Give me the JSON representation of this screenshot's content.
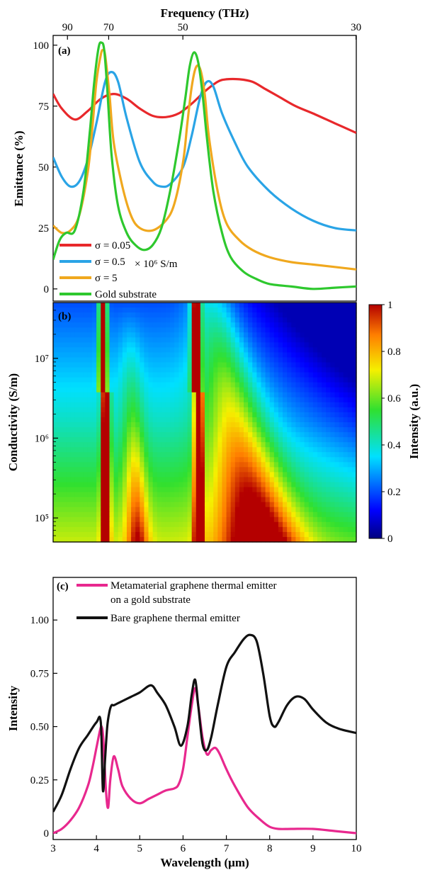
{
  "figure": {
    "panel_a_label": "(a)",
    "panel_b_label": "(b)",
    "panel_c_label": "(c)",
    "top_axis_title": "Frequency (THz)",
    "top_axis_ticks": [
      "90",
      "70",
      "50",
      "30"
    ],
    "ylabel_a": "Emittance (%)",
    "ylabel_b": "Conductivity (S/m)",
    "ylabel_c": "Intensity",
    "xlabel": "Wavelength (μm)",
    "colorbar_label": "Intensity (a.u.)",
    "legend_unit_text": "× 10⁶ S/m"
  },
  "chart_data": [
    {
      "panel": "a",
      "type": "line",
      "ylabel": "Emittance (%)",
      "xlabel_top": "Frequency (THz)",
      "x_ticks_top": [
        90,
        70,
        50,
        30
      ],
      "y_ticks": [
        0,
        25,
        50,
        75,
        100
      ],
      "xlim": [
        3,
        10
      ],
      "ylim": [
        -5,
        104
      ],
      "legend_position": "bottom-left",
      "series": [
        {
          "name": "σ = 0.05",
          "color": "#e8282b",
          "x": [
            3.0,
            3.2,
            3.5,
            3.8,
            4.1,
            4.4,
            4.7,
            5.0,
            5.3,
            5.6,
            5.9,
            6.2,
            6.5,
            6.8,
            7.0,
            7.3,
            7.6,
            7.9,
            8.2,
            8.6,
            9.0,
            9.5,
            10.0
          ],
          "y": [
            80,
            74,
            69.5,
            73,
            78,
            80,
            78,
            74,
            71,
            70.5,
            72,
            76,
            81,
            85,
            86,
            86,
            85,
            82,
            79,
            75,
            72,
            68,
            64
          ]
        },
        {
          "name": "σ = 0.5",
          "color": "#2aa4e6",
          "x": [
            3.0,
            3.2,
            3.4,
            3.6,
            3.8,
            4.0,
            4.2,
            4.35,
            4.5,
            4.7,
            5.0,
            5.3,
            5.5,
            5.7,
            6.0,
            6.2,
            6.4,
            6.55,
            6.7,
            6.9,
            7.2,
            7.5,
            8.0,
            8.5,
            9.0,
            9.5,
            10.0
          ],
          "y": [
            54,
            46,
            42,
            44,
            53,
            68,
            85,
            89,
            85,
            70,
            52,
            44,
            42,
            43,
            50,
            63,
            79,
            85,
            83,
            72,
            60,
            50,
            40,
            33,
            28,
            25,
            24
          ]
        },
        {
          "name": "σ = 5",
          "color": "#f0a81e",
          "x": [
            3.0,
            3.2,
            3.4,
            3.6,
            3.8,
            3.9,
            4.0,
            4.1,
            4.15,
            4.2,
            4.3,
            4.4,
            4.6,
            4.8,
            5.0,
            5.3,
            5.6,
            5.8,
            6.0,
            6.1,
            6.2,
            6.3,
            6.4,
            6.5,
            6.6,
            6.8,
            7.0,
            7.3,
            7.6,
            8.0,
            8.5,
            9.0,
            10.0
          ],
          "y": [
            26,
            23,
            24,
            30,
            48,
            65,
            85,
            96,
            98,
            96,
            80,
            60,
            42,
            30,
            25,
            24,
            28,
            35,
            52,
            68,
            83,
            91,
            90,
            80,
            62,
            40,
            27,
            20,
            16,
            13,
            11,
            10,
            8
          ]
        },
        {
          "name": "Gold substrate",
          "color": "#2ec82e",
          "x": [
            3.0,
            3.15,
            3.3,
            3.5,
            3.7,
            3.85,
            3.95,
            4.05,
            4.12,
            4.18,
            4.25,
            4.35,
            4.5,
            4.7,
            4.9,
            5.1,
            5.3,
            5.5,
            5.7,
            5.9,
            6.05,
            6.15,
            6.25,
            6.35,
            6.45,
            6.55,
            6.7,
            6.9,
            7.1,
            7.4,
            7.7,
            8.0,
            8.5,
            9.0,
            9.5,
            10.0
          ],
          "y": [
            12,
            20,
            23,
            24,
            40,
            65,
            85,
            99,
            101,
            98,
            82,
            55,
            34,
            23,
            18,
            16,
            18,
            25,
            40,
            60,
            78,
            91,
            97,
            93,
            80,
            62,
            40,
            23,
            13,
            7,
            4,
            2,
            1,
            0,
            0.5,
            1
          ]
        }
      ]
    },
    {
      "panel": "b",
      "type": "heatmap",
      "ylabel": "Conductivity (S/m)",
      "y_scale": "log",
      "y_ticks": [
        "10⁵",
        "10⁶",
        "10⁷"
      ],
      "ylim": [
        50000,
        50000000
      ],
      "xlim": [
        3,
        10
      ],
      "colorbar": {
        "label": "Intensity (a.u.)",
        "ticks": [
          0,
          0.2,
          0.4,
          0.6,
          0.8,
          1
        ],
        "range": [
          0,
          1
        ],
        "colormap": "jet"
      }
    },
    {
      "panel": "c",
      "type": "line",
      "xlabel": "Wavelength (μm)",
      "ylabel": "Intensity",
      "x_ticks": [
        3,
        4,
        5,
        6,
        7,
        8,
        9,
        10
      ],
      "y_ticks": [
        "0",
        "0.25",
        "0.50",
        "0.75",
        "1.00"
      ],
      "xlim": [
        3,
        10
      ],
      "ylim": [
        -0.03,
        1.2
      ],
      "legend_position": "top-left",
      "series": [
        {
          "name": "Metamaterial graphene thermal emitter on a gold substrate",
          "color": "#e8288e",
          "x": [
            3.0,
            3.2,
            3.4,
            3.6,
            3.8,
            3.9,
            4.0,
            4.08,
            4.12,
            4.16,
            4.22,
            4.27,
            4.32,
            4.4,
            4.5,
            4.6,
            4.8,
            5.0,
            5.2,
            5.4,
            5.6,
            5.8,
            5.9,
            6.0,
            6.1,
            6.2,
            6.28,
            6.35,
            6.45,
            6.55,
            6.65,
            6.75,
            6.85,
            7.0,
            7.2,
            7.5,
            7.8,
            8.0,
            8.2,
            8.5,
            9.0,
            9.5,
            10.0
          ],
          "y": [
            0.0,
            0.02,
            0.06,
            0.12,
            0.22,
            0.3,
            0.4,
            0.48,
            0.5,
            0.44,
            0.2,
            0.12,
            0.25,
            0.36,
            0.3,
            0.22,
            0.16,
            0.14,
            0.16,
            0.18,
            0.2,
            0.21,
            0.23,
            0.3,
            0.45,
            0.6,
            0.68,
            0.6,
            0.45,
            0.37,
            0.39,
            0.4,
            0.37,
            0.3,
            0.22,
            0.12,
            0.06,
            0.03,
            0.02,
            0.02,
            0.02,
            0.01,
            0.0
          ]
        },
        {
          "name": "Bare graphene thermal emitter",
          "color": "#111111",
          "x": [
            3.0,
            3.2,
            3.4,
            3.6,
            3.8,
            4.0,
            4.1,
            4.15,
            4.2,
            4.25,
            4.3,
            4.35,
            4.4,
            4.5,
            4.6,
            4.8,
            5.0,
            5.2,
            5.3,
            5.4,
            5.6,
            5.8,
            5.95,
            6.1,
            6.2,
            6.28,
            6.35,
            6.45,
            6.55,
            6.65,
            6.8,
            7.0,
            7.2,
            7.4,
            7.55,
            7.7,
            7.85,
            8.0,
            8.1,
            8.2,
            8.4,
            8.6,
            8.8,
            9.0,
            9.3,
            9.6,
            10.0
          ],
          "y": [
            0.1,
            0.18,
            0.3,
            0.4,
            0.46,
            0.52,
            0.52,
            0.2,
            0.35,
            0.5,
            0.57,
            0.6,
            0.6,
            0.61,
            0.62,
            0.64,
            0.66,
            0.69,
            0.69,
            0.66,
            0.6,
            0.5,
            0.41,
            0.5,
            0.65,
            0.72,
            0.6,
            0.42,
            0.39,
            0.45,
            0.6,
            0.78,
            0.85,
            0.91,
            0.93,
            0.9,
            0.75,
            0.55,
            0.5,
            0.52,
            0.6,
            0.64,
            0.63,
            0.58,
            0.52,
            0.49,
            0.47
          ]
        }
      ]
    }
  ]
}
